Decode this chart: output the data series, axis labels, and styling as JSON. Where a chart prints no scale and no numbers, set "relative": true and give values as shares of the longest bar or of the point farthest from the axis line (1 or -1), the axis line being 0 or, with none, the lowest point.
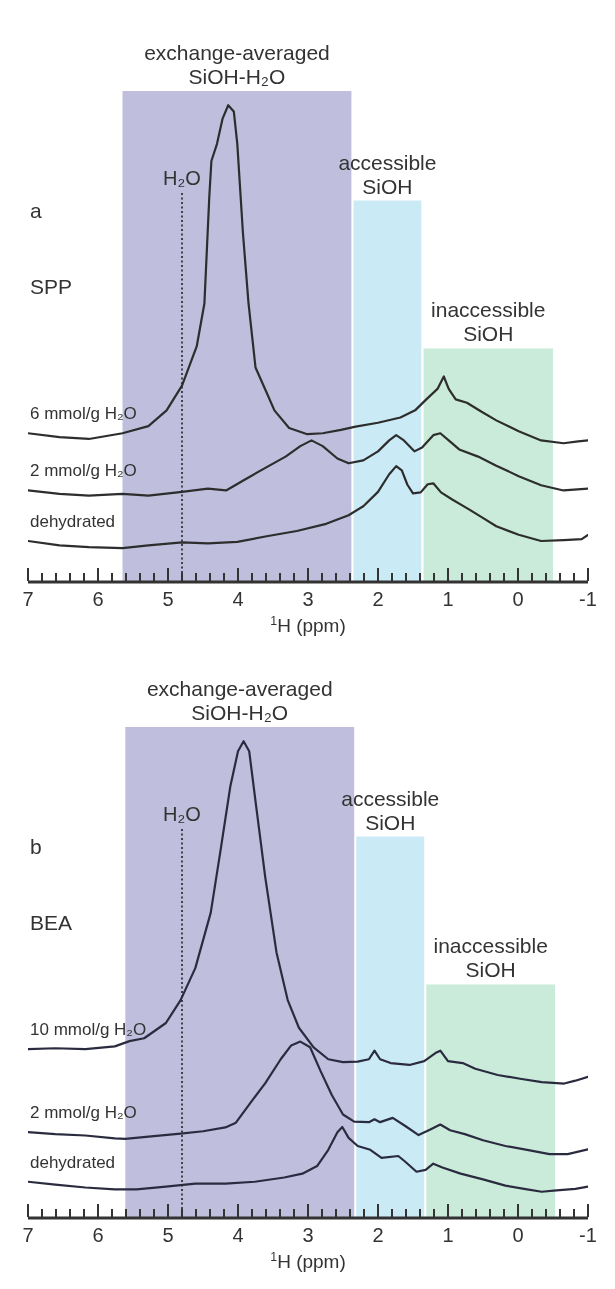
{
  "chart_data": [
    {
      "type": "line",
      "relative": true,
      "xlabel": "$^{1}$H (ppm)",
      "annotations": [
        "a",
        "SPP"
      ],
      "xlim": [
        7,
        -1
      ],
      "xticks": [
        7,
        {
          "value": 6.8,
          "label": null
        },
        {
          "value": 6.6,
          "label": null
        },
        {
          "value": 6.4,
          "label": null
        },
        {
          "value": 6.2,
          "label": null
        },
        6,
        {
          "value": 5.8,
          "label": null
        },
        {
          "value": 5.6,
          "label": null
        },
        {
          "value": 5.4,
          "label": null
        },
        {
          "value": 5.2,
          "label": null
        },
        5,
        {
          "value": 4.8,
          "label": null
        },
        {
          "value": 4.6,
          "label": null
        },
        {
          "value": 4.4,
          "label": null
        },
        {
          "value": 4.2,
          "label": null
        },
        4,
        {
          "value": 3.8,
          "label": null
        },
        {
          "value": 3.6,
          "label": null
        },
        {
          "value": 3.4,
          "label": null
        },
        {
          "value": 3.2,
          "label": null
        },
        3,
        {
          "value": 2.8,
          "label": null
        },
        {
          "value": 2.6,
          "label": null
        },
        {
          "value": 2.4,
          "label": null
        },
        {
          "value": 2.2,
          "label": null
        },
        2,
        {
          "value": 1.8,
          "label": null
        },
        {
          "value": 1.6,
          "label": null
        },
        {
          "value": 1.4,
          "label": null
        },
        {
          "value": 1.2,
          "label": null
        },
        1,
        {
          "value": 0.8,
          "label": null
        },
        {
          "value": 0.6,
          "label": null
        },
        {
          "value": 0.4,
          "label": null
        },
        {
          "value": 0.2,
          "label": null
        },
        0,
        {
          "value": -0.2,
          "label": null
        },
        {
          "value": -0.4,
          "label": null
        },
        {
          "value": -0.6,
          "label": null
        },
        {
          "value": -0.8,
          "label": null
        },
        -1
      ],
      "bands": [
        {
          "axis": "x",
          "from": 5.65,
          "to": 2.38,
          "label": "exchange-averaged SiOH-H₂O",
          "color": "#bfbfdd"
        },
        {
          "axis": "x",
          "from": 2.35,
          "to": 1.38,
          "label": "accessible SiOH",
          "color": "#caeaf6"
        },
        {
          "axis": "x",
          "from": 1.35,
          "to": -0.5,
          "label": "inaccessible SiOH",
          "color": "#caebda"
        }
      ],
      "ref_lines": [
        {
          "axis": "x",
          "value": 4.8,
          "label": "H₂O",
          "line_style": "dotted",
          "color": "#222222"
        }
      ],
      "series": [
        {
          "name": "6 mmol/g H₂O",
          "color": "#2d2d2d",
          "x": [
            7.0,
            6.55,
            6.13,
            5.65,
            5.28,
            5.02,
            4.8,
            4.59,
            4.48,
            4.41,
            4.38,
            4.3,
            4.22,
            4.14,
            4.06,
            4.01,
            3.93,
            3.85,
            3.75,
            3.59,
            3.48,
            3.27,
            3.01,
            2.79,
            2.53,
            2.32,
            2.0,
            1.68,
            1.47,
            1.31,
            1.15,
            1.06,
            0.99,
            0.89,
            0.73,
            0.52,
            0.31,
            -0.01,
            -0.33,
            -0.65,
            -0.86,
            -1.0
          ],
          "values": [
            0.312,
            0.304,
            0.3,
            0.312,
            0.327,
            0.36,
            0.412,
            0.494,
            0.584,
            0.808,
            0.883,
            0.919,
            0.972,
            1.0,
            0.987,
            0.919,
            0.733,
            0.585,
            0.45,
            0.397,
            0.36,
            0.323,
            0.31,
            0.312,
            0.319,
            0.326,
            0.334,
            0.345,
            0.36,
            0.383,
            0.405,
            0.431,
            0.405,
            0.383,
            0.376,
            0.357,
            0.339,
            0.316,
            0.297,
            0.291,
            0.295,
            0.297
          ]
        },
        {
          "name": "2 mmol/g H₂O",
          "color": "#2d2d2d",
          "x": [
            7.0,
            6.55,
            6.13,
            5.65,
            5.28,
            4.8,
            4.43,
            4.17,
            3.9,
            3.59,
            3.32,
            3.11,
            2.95,
            2.79,
            2.58,
            2.42,
            2.21,
            2.0,
            1.84,
            1.74,
            1.63,
            1.48,
            1.37,
            1.21,
            1.11,
            0.99,
            0.84,
            0.57,
            0.31,
            -0.01,
            -0.33,
            -0.65,
            -1.0
          ],
          "values": [
            0.192,
            0.185,
            0.181,
            0.185,
            0.181,
            0.189,
            0.196,
            0.192,
            0.215,
            0.241,
            0.263,
            0.285,
            0.297,
            0.285,
            0.259,
            0.249,
            0.255,
            0.274,
            0.297,
            0.308,
            0.297,
            0.274,
            0.282,
            0.308,
            0.312,
            0.297,
            0.278,
            0.263,
            0.244,
            0.222,
            0.203,
            0.192,
            0.196
          ]
        },
        {
          "name": "dehydrated",
          "color": "#2d2d2d",
          "x": [
            7.0,
            6.55,
            6.13,
            5.65,
            5.28,
            4.8,
            4.43,
            4.01,
            3.59,
            3.16,
            2.74,
            2.42,
            2.21,
            2.0,
            1.84,
            1.74,
            1.66,
            1.58,
            1.5,
            1.39,
            1.29,
            1.21,
            1.1,
            0.94,
            0.73,
            0.52,
            0.31,
            -0.01,
            -0.33,
            -0.65,
            -0.91,
            -1.0
          ],
          "values": [
            0.086,
            0.077,
            0.073,
            0.071,
            0.077,
            0.083,
            0.081,
            0.084,
            0.096,
            0.107,
            0.122,
            0.14,
            0.159,
            0.189,
            0.226,
            0.243,
            0.234,
            0.204,
            0.186,
            0.188,
            0.205,
            0.207,
            0.188,
            0.173,
            0.155,
            0.136,
            0.117,
            0.099,
            0.086,
            0.088,
            0.09,
            0.099
          ]
        }
      ]
    },
    {
      "type": "line",
      "relative": true,
      "xlabel": "$^{1}$H (ppm)",
      "annotations": [
        "b",
        "BEA"
      ],
      "xlim": [
        7,
        -1
      ],
      "xticks": [
        7,
        {
          "value": 6.8,
          "label": null
        },
        {
          "value": 6.6,
          "label": null
        },
        {
          "value": 6.4,
          "label": null
        },
        {
          "value": 6.2,
          "label": null
        },
        6,
        {
          "value": 5.8,
          "label": null
        },
        {
          "value": 5.6,
          "label": null
        },
        {
          "value": 5.4,
          "label": null
        },
        {
          "value": 5.2,
          "label": null
        },
        5,
        {
          "value": 4.8,
          "label": null
        },
        {
          "value": 4.6,
          "label": null
        },
        {
          "value": 4.4,
          "label": null
        },
        {
          "value": 4.2,
          "label": null
        },
        4,
        {
          "value": 3.8,
          "label": null
        },
        {
          "value": 3.6,
          "label": null
        },
        {
          "value": 3.4,
          "label": null
        },
        {
          "value": 3.2,
          "label": null
        },
        3,
        {
          "value": 2.8,
          "label": null
        },
        {
          "value": 2.6,
          "label": null
        },
        {
          "value": 2.4,
          "label": null
        },
        {
          "value": 2.2,
          "label": null
        },
        2,
        {
          "value": 1.8,
          "label": null
        },
        {
          "value": 1.6,
          "label": null
        },
        {
          "value": 1.4,
          "label": null
        },
        {
          "value": 1.2,
          "label": null
        },
        1,
        {
          "value": 0.8,
          "label": null
        },
        {
          "value": 0.6,
          "label": null
        },
        {
          "value": 0.4,
          "label": null
        },
        {
          "value": 0.2,
          "label": null
        },
        0,
        {
          "value": -0.2,
          "label": null
        },
        {
          "value": -0.4,
          "label": null
        },
        {
          "value": -0.6,
          "label": null
        },
        {
          "value": -0.8,
          "label": null
        },
        -1
      ],
      "bands": [
        {
          "axis": "x",
          "from": 5.61,
          "to": 2.34,
          "label": "exchange-averaged SiOH-H₂O",
          "color": "#bfbfdd"
        },
        {
          "axis": "x",
          "from": 2.31,
          "to": 1.34,
          "label": "accessible SiOH",
          "color": "#caeaf6"
        },
        {
          "axis": "x",
          "from": 1.31,
          "to": -0.53,
          "label": "inaccessible SiOH",
          "color": "#caebda"
        }
      ],
      "ref_lines": [
        {
          "axis": "x",
          "value": 4.8,
          "label": "H₂O",
          "line_style": "dotted",
          "color": "#222222"
        }
      ],
      "series": [
        {
          "name": "10 mmol/g H₂O",
          "color": "#2b2b40",
          "x": [
            7.0,
            6.61,
            6.18,
            5.76,
            5.55,
            5.34,
            5.03,
            4.82,
            4.61,
            4.39,
            4.24,
            4.11,
            4.0,
            3.92,
            3.84,
            3.74,
            3.61,
            3.45,
            3.29,
            3.13,
            2.92,
            2.71,
            2.5,
            2.29,
            2.13,
            2.05,
            1.97,
            1.82,
            1.55,
            1.34,
            1.18,
            1.11,
            1.0,
            0.79,
            0.61,
            0.29,
            -0.03,
            -0.34,
            -0.66,
            -0.82,
            -1.0
          ],
          "values": [
            0.354,
            0.356,
            0.354,
            0.36,
            0.371,
            0.377,
            0.409,
            0.457,
            0.524,
            0.64,
            0.78,
            0.905,
            0.979,
            1.0,
            0.979,
            0.863,
            0.714,
            0.557,
            0.457,
            0.399,
            0.358,
            0.333,
            0.327,
            0.328,
            0.333,
            0.351,
            0.333,
            0.325,
            0.321,
            0.329,
            0.346,
            0.351,
            0.329,
            0.325,
            0.313,
            0.3,
            0.292,
            0.285,
            0.282,
            0.288,
            0.296
          ]
        },
        {
          "name": "2 mmol/g H₂O",
          "color": "#2b2b40",
          "x": [
            7.0,
            6.61,
            6.18,
            5.76,
            5.61,
            5.24,
            4.82,
            4.5,
            4.18,
            4.03,
            3.82,
            3.61,
            3.39,
            3.24,
            3.11,
            2.97,
            2.82,
            2.66,
            2.5,
            2.34,
            2.13,
            2.05,
            1.97,
            1.79,
            1.61,
            1.42,
            1.26,
            1.11,
            0.97,
            0.76,
            0.5,
            0.18,
            -0.13,
            -0.45,
            -0.71,
            -1.0
          ],
          "values": [
            0.18,
            0.176,
            0.173,
            0.167,
            0.166,
            0.171,
            0.177,
            0.182,
            0.19,
            0.2,
            0.242,
            0.283,
            0.333,
            0.362,
            0.37,
            0.358,
            0.308,
            0.258,
            0.217,
            0.202,
            0.201,
            0.207,
            0.201,
            0.21,
            0.193,
            0.174,
            0.185,
            0.196,
            0.184,
            0.176,
            0.163,
            0.151,
            0.143,
            0.134,
            0.134,
            0.144
          ]
        },
        {
          "name": "dehydrated",
          "color": "#2b2b40",
          "x": [
            7.0,
            6.61,
            6.18,
            5.76,
            5.45,
            5.03,
            4.61,
            4.18,
            3.76,
            3.34,
            3.08,
            2.87,
            2.71,
            2.58,
            2.51,
            2.42,
            2.29,
            2.11,
            1.95,
            1.71,
            1.61,
            1.45,
            1.32,
            1.21,
            1.08,
            0.82,
            0.5,
            0.18,
            -0.13,
            -0.34,
            -0.55,
            -0.82,
            -1.0
          ],
          "values": [
            0.076,
            0.07,
            0.064,
            0.06,
            0.06,
            0.066,
            0.072,
            0.072,
            0.076,
            0.085,
            0.093,
            0.109,
            0.143,
            0.18,
            0.191,
            0.168,
            0.151,
            0.143,
            0.126,
            0.13,
            0.118,
            0.097,
            0.101,
            0.114,
            0.106,
            0.093,
            0.081,
            0.068,
            0.06,
            0.055,
            0.058,
            0.061,
            0.066
          ]
        }
      ]
    }
  ]
}
